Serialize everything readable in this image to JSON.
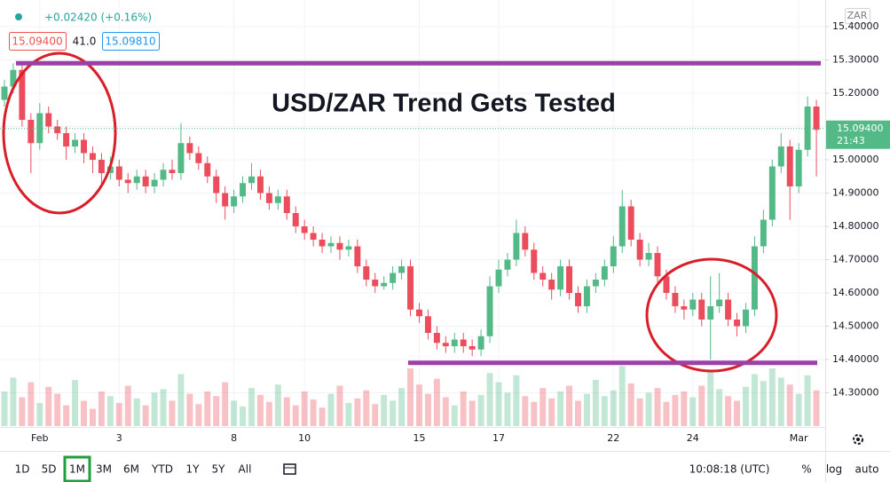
{
  "chart_data": {
    "type": "candlestick",
    "title": "USD/ZAR Trend Gets Tested",
    "change": "+0.02420 (+0.16%)",
    "bid": "15.09400",
    "spread": "41.0",
    "ask": "15.09810",
    "currency": "ZAR",
    "last_price": {
      "value": 15.094,
      "label": "15.09400"
    },
    "countdown": "21:43",
    "time": "10:08:18 (UTC)",
    "ranges": [
      "1D",
      "5D",
      "1M",
      "3M",
      "6M",
      "YTD",
      "1Y",
      "5Y",
      "All"
    ],
    "selected_range": "1M",
    "scale_options": [
      "%",
      "log",
      "auto"
    ],
    "up_color": "#53b987",
    "down_color": "#eb4d5c",
    "levels": [
      {
        "value": 15.29,
        "color": "#9c3fa6"
      },
      {
        "value": 14.39,
        "color": "#9c3fa6"
      }
    ],
    "ylim": [
      14.2,
      15.48
    ],
    "yticks": [
      {
        "value": 15.4,
        "label": "15.40000"
      },
      {
        "value": 15.3,
        "label": "15.30000"
      },
      {
        "value": 15.2,
        "label": "15.20000"
      },
      {
        "value": 15.1,
        "label": "15.10000"
      },
      {
        "value": 15.0,
        "label": "15.00000"
      },
      {
        "value": 14.9,
        "label": "14.90000"
      },
      {
        "value": 14.8,
        "label": "14.80000"
      },
      {
        "value": 14.7,
        "label": "14.70000"
      },
      {
        "value": 14.6,
        "label": "14.60000"
      },
      {
        "value": 14.5,
        "label": "14.50000"
      },
      {
        "value": 14.4,
        "label": "14.40000"
      },
      {
        "value": 14.3,
        "label": "14.30000"
      }
    ],
    "grid": true,
    "categories": [
      null,
      null,
      null,
      null,
      "Feb",
      null,
      null,
      null,
      null,
      null,
      null,
      null,
      null,
      "3",
      null,
      null,
      null,
      null,
      null,
      null,
      null,
      null,
      null,
      null,
      null,
      null,
      "8",
      null,
      null,
      null,
      null,
      null,
      null,
      null,
      "10",
      null,
      null,
      null,
      null,
      null,
      null,
      null,
      null,
      null,
      null,
      null,
      null,
      "15",
      null,
      null,
      null,
      null,
      null,
      null,
      null,
      null,
      "17",
      null,
      null,
      null,
      null,
      null,
      null,
      null,
      null,
      null,
      null,
      null,
      null,
      "22",
      null,
      null,
      null,
      null,
      null,
      null,
      null,
      null,
      "24",
      null,
      null,
      null,
      null,
      null,
      null,
      null,
      null,
      null,
      null,
      null,
      "Mar",
      null,
      null
    ],
    "open": [
      15.18,
      15.22,
      15.27,
      15.12,
      15.05,
      15.14,
      15.1,
      15.08,
      15.04,
      15.06,
      15.02,
      15.0,
      14.96,
      14.98,
      14.94,
      14.93,
      14.95,
      14.92,
      14.94,
      14.97,
      14.96,
      15.05,
      15.02,
      14.99,
      14.95,
      14.9,
      14.86,
      14.89,
      14.93,
      14.95,
      14.9,
      14.87,
      14.89,
      14.84,
      14.8,
      14.78,
      14.76,
      14.74,
      14.75,
      14.73,
      14.74,
      14.68,
      14.64,
      14.62,
      14.63,
      14.66,
      14.68,
      14.55,
      14.53,
      14.48,
      14.45,
      14.44,
      14.46,
      14.44,
      14.43,
      14.47,
      14.62,
      14.67,
      14.7,
      14.78,
      14.73,
      14.66,
      14.64,
      14.61,
      14.68,
      14.6,
      14.56,
      14.62,
      14.64,
      14.68,
      14.74,
      14.86,
      14.76,
      14.7,
      14.72,
      14.65,
      14.6,
      14.56,
      14.55,
      14.58,
      14.52,
      14.56,
      14.58,
      14.52,
      14.5,
      14.55,
      14.74,
      14.82,
      14.98,
      15.04,
      14.92,
      15.03,
      15.16
    ],
    "high": [
      15.24,
      15.29,
      15.29,
      15.14,
      15.17,
      15.16,
      15.12,
      15.1,
      15.08,
      15.08,
      15.04,
      15.02,
      15.01,
      15.0,
      14.96,
      14.97,
      14.97,
      14.96,
      14.99,
      15.0,
      15.11,
      15.07,
      15.04,
      15.01,
      14.97,
      14.92,
      14.91,
      14.95,
      14.99,
      14.97,
      14.92,
      14.91,
      14.91,
      14.86,
      14.82,
      14.8,
      14.78,
      14.77,
      14.77,
      14.76,
      14.76,
      14.7,
      14.66,
      14.65,
      14.68,
      14.7,
      14.7,
      14.57,
      14.55,
      14.5,
      14.47,
      14.48,
      14.48,
      14.46,
      14.49,
      14.65,
      14.7,
      14.72,
      14.82,
      14.8,
      14.75,
      14.68,
      14.66,
      14.7,
      14.7,
      14.62,
      14.64,
      14.66,
      14.7,
      14.77,
      14.91,
      14.88,
      14.78,
      14.75,
      14.74,
      14.67,
      14.62,
      14.58,
      14.6,
      14.6,
      14.65,
      14.66,
      14.6,
      14.54,
      14.57,
      14.77,
      14.85,
      15.0,
      15.08,
      15.06,
      15.05,
      15.19,
      15.18
    ],
    "low": [
      15.16,
      15.2,
      15.1,
      14.96,
      15.03,
      15.08,
      15.06,
      15.0,
      15.02,
      14.99,
      14.96,
      14.92,
      14.94,
      14.92,
      14.9,
      14.91,
      14.9,
      14.9,
      14.92,
      14.94,
      14.94,
      15.0,
      14.97,
      14.93,
      14.87,
      14.82,
      14.84,
      14.87,
      14.91,
      14.88,
      14.85,
      14.85,
      14.82,
      14.78,
      14.76,
      14.74,
      14.72,
      14.72,
      14.7,
      14.71,
      14.66,
      14.62,
      14.6,
      14.61,
      14.61,
      14.64,
      14.53,
      14.51,
      14.46,
      14.43,
      14.42,
      14.42,
      14.42,
      14.41,
      14.41,
      14.45,
      14.6,
      14.65,
      14.68,
      14.71,
      14.64,
      14.62,
      14.58,
      14.59,
      14.58,
      14.54,
      14.54,
      14.6,
      14.62,
      14.66,
      14.72,
      14.74,
      14.68,
      14.68,
      14.63,
      14.58,
      14.54,
      14.52,
      14.53,
      14.5,
      14.4,
      14.54,
      14.5,
      14.47,
      14.48,
      14.53,
      14.72,
      14.8,
      14.96,
      14.82,
      14.9,
      15.01,
      14.95
    ],
    "close": [
      15.22,
      15.27,
      15.12,
      15.05,
      15.14,
      15.1,
      15.08,
      15.04,
      15.06,
      15.02,
      15.0,
      14.96,
      14.98,
      14.94,
      14.93,
      14.95,
      14.92,
      14.94,
      14.97,
      14.96,
      15.05,
      15.02,
      14.99,
      14.95,
      14.9,
      14.86,
      14.89,
      14.93,
      14.95,
      14.9,
      14.87,
      14.89,
      14.84,
      14.8,
      14.78,
      14.76,
      14.74,
      14.75,
      14.73,
      14.74,
      14.68,
      14.64,
      14.62,
      14.63,
      14.66,
      14.68,
      14.55,
      14.53,
      14.48,
      14.45,
      14.44,
      14.46,
      14.44,
      14.43,
      14.47,
      14.62,
      14.67,
      14.7,
      14.78,
      14.73,
      14.66,
      14.64,
      14.61,
      14.68,
      14.6,
      14.56,
      14.62,
      14.64,
      14.68,
      14.74,
      14.86,
      14.76,
      14.7,
      14.72,
      14.65,
      14.6,
      14.56,
      14.55,
      14.58,
      14.52,
      14.56,
      14.58,
      14.52,
      14.5,
      14.55,
      14.74,
      14.82,
      14.98,
      15.04,
      14.92,
      15.03,
      15.16,
      15.09
    ],
    "volume": [
      30,
      42,
      25,
      38,
      20,
      34,
      28,
      18,
      40,
      22,
      15,
      30,
      26,
      20,
      35,
      24,
      18,
      29,
      32,
      22,
      45,
      28,
      19,
      30,
      26,
      38,
      22,
      17,
      33,
      27,
      21,
      36,
      25,
      18,
      30,
      23,
      16,
      28,
      35,
      20,
      24,
      31,
      19,
      27,
      22,
      33,
      50,
      36,
      28,
      41,
      25,
      18,
      30,
      22,
      27,
      46,
      38,
      29,
      44,
      26,
      21,
      33,
      24,
      30,
      35,
      22,
      28,
      40,
      26,
      31,
      52,
      37,
      24,
      29,
      33,
      21,
      27,
      30,
      25,
      35,
      48,
      32,
      26,
      22,
      34,
      45,
      39,
      50,
      42,
      36,
      28,
      44,
      31
    ]
  }
}
